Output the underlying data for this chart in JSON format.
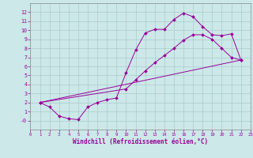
{
  "bg_color": "#cce8e8",
  "grid_color": "#aacccc",
  "line_color": "#990099",
  "xlim": [
    0,
    23
  ],
  "ylim": [
    -1,
    13
  ],
  "xticks": [
    0,
    1,
    2,
    3,
    4,
    5,
    6,
    7,
    8,
    9,
    10,
    11,
    12,
    13,
    14,
    15,
    16,
    17,
    18,
    19,
    20,
    21,
    22,
    23
  ],
  "yticks": [
    0,
    1,
    2,
    3,
    4,
    5,
    6,
    7,
    8,
    9,
    10,
    11,
    12
  ],
  "xlabel": "Windchill (Refroidissement éolien,°C)",
  "line1_x": [
    1,
    2,
    3,
    4,
    5,
    6,
    7,
    8,
    9,
    10,
    11,
    12,
    13,
    14,
    15,
    16,
    17,
    18,
    19,
    20,
    21,
    22
  ],
  "line1_y": [
    2.0,
    1.5,
    0.5,
    0.2,
    0.1,
    1.5,
    2.0,
    2.3,
    2.5,
    5.3,
    7.8,
    9.7,
    10.1,
    10.1,
    11.2,
    11.9,
    11.5,
    10.4,
    9.5,
    9.4,
    9.6,
    6.7
  ],
  "line2_x": [
    1,
    10,
    11,
    12,
    13,
    14,
    15,
    16,
    17,
    18,
    19,
    20,
    21,
    22
  ],
  "line2_y": [
    2.0,
    3.5,
    4.5,
    5.5,
    6.4,
    7.2,
    8.0,
    8.9,
    9.5,
    9.5,
    9.0,
    8.0,
    7.0,
    6.7
  ],
  "line3_x": [
    1,
    22
  ],
  "line3_y": [
    2.0,
    6.7
  ]
}
